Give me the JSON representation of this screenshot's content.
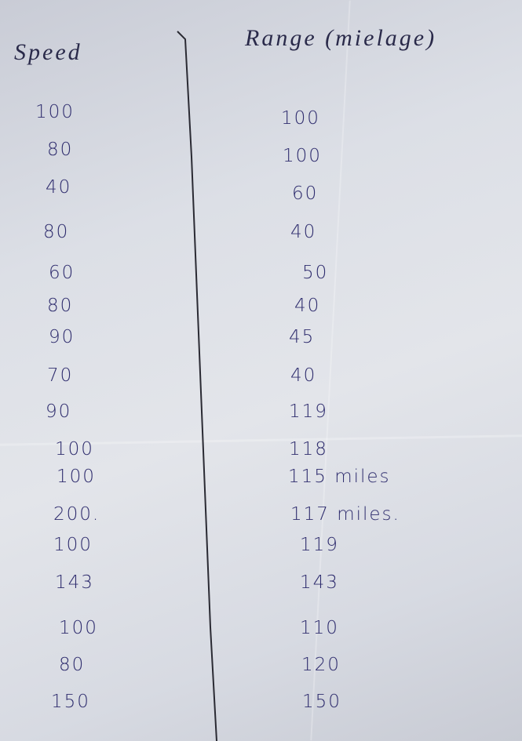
{
  "table": {
    "header": [
      "Speed",
      "Range (mielage)"
    ],
    "rows": [
      [
        "100",
        "100"
      ],
      [
        "80",
        "100"
      ],
      [
        "40",
        "60"
      ],
      [
        "80",
        "40"
      ],
      [
        "60",
        "50"
      ],
      [
        "80",
        "40"
      ],
      [
        "90",
        "45"
      ],
      [
        "70",
        "40"
      ],
      [
        "90",
        "119"
      ],
      [
        "100",
        "118"
      ],
      [
        "100",
        "115 miles"
      ],
      [
        "200.",
        "117 miles."
      ],
      [
        "100",
        "119"
      ],
      [
        "143",
        "143"
      ],
      [
        "100",
        "110"
      ],
      [
        "80",
        "120"
      ],
      [
        "150",
        "150"
      ]
    ]
  }
}
